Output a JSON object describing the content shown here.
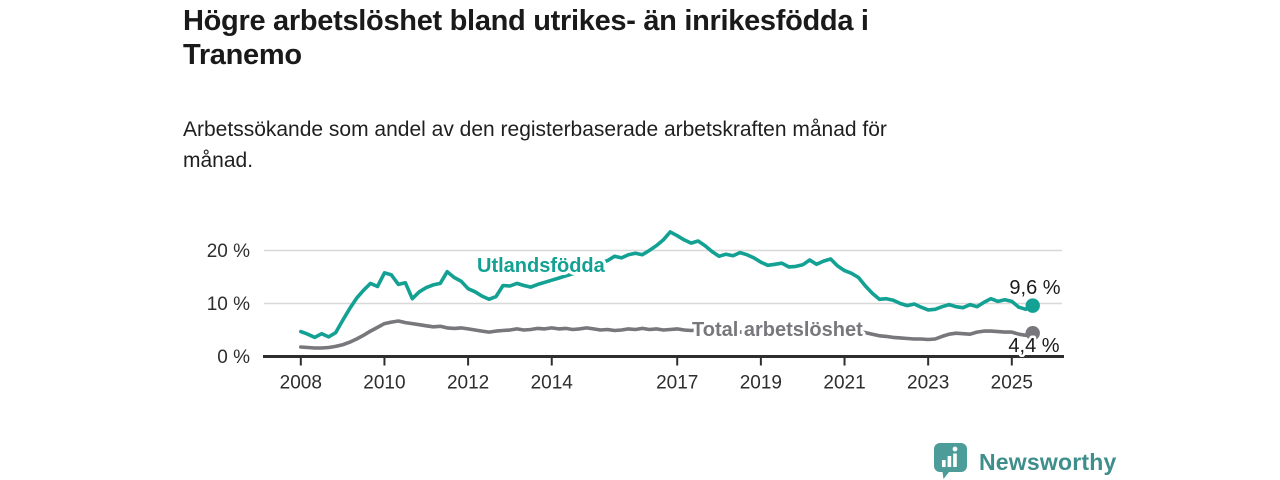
{
  "header": {
    "title_line1": "Högre arbetslöshet bland utrikes- än inrikesfödda i",
    "title_line2": "Tranemo",
    "subtitle_line1": "Arbetssökande som andel av den registerbaserade arbetskraften månad för",
    "subtitle_line2": "månad."
  },
  "footer": {
    "brand": "Newsworthy",
    "brand_color": "#3E8E8B",
    "logo_bubble_color": "#4C9D99"
  },
  "chart_data": {
    "type": "line",
    "title": "Högre arbetslöshet bland utrikes- än inrikesfödda i Tranemo",
    "subtitle": "Arbetssökande som andel av den registerbaserade arbetskraften månad för månad.",
    "grid": "horizontal",
    "legend_position": "inline-labels",
    "x_range": [
      2007.12,
      2026.2
    ],
    "ylim": [
      0,
      24.5
    ],
    "x_ticks": [
      2008,
      2010,
      2012,
      2014,
      2017,
      2019,
      2021,
      2023,
      2025
    ],
    "y_ticks": [
      {
        "value": 0,
        "label": "0 %"
      },
      {
        "value": 10,
        "label": "10 %"
      },
      {
        "value": 20,
        "label": "20 %"
      }
    ],
    "colors": {
      "grid": "#d8d8d8",
      "axis": "#2e2e2e",
      "tick_text": "#2e2e2e",
      "value_label_text": "#1a1a1a"
    },
    "x_start": 2008.0,
    "x_step": 0.1666667,
    "series": [
      {
        "name": "Utlandsfödda",
        "color": "#12A193",
        "end_label": "9,6 %",
        "end_value": 9.6,
        "values": [
          4.7,
          4.2,
          3.6,
          4.3,
          3.7,
          4.5,
          6.8,
          9.0,
          11.0,
          12.5,
          13.8,
          13.2,
          15.8,
          15.4,
          13.6,
          13.9,
          10.9,
          12.2,
          13.0,
          13.5,
          13.8,
          16.0,
          14.9,
          14.2,
          12.8,
          12.2,
          11.4,
          10.8,
          11.3,
          13.4,
          13.3,
          13.8,
          13.4,
          13.1,
          13.6,
          14.0,
          14.4,
          14.8,
          15.2,
          15.6,
          16.1,
          16.6,
          17.2,
          17.6,
          18.1,
          18.9,
          18.6,
          19.2,
          19.5,
          19.2,
          20.0,
          20.9,
          22.0,
          23.5,
          22.8,
          22.0,
          21.4,
          21.8,
          20.9,
          19.8,
          18.9,
          19.3,
          19.0,
          19.6,
          19.2,
          18.6,
          17.8,
          17.2,
          17.4,
          17.6,
          16.9,
          17.0,
          17.3,
          18.2,
          17.4,
          18.0,
          18.4,
          17.1,
          16.2,
          15.7,
          14.9,
          13.3,
          11.9,
          10.8,
          10.9,
          10.6,
          10.0,
          9.6,
          9.9,
          9.3,
          8.8,
          8.9,
          9.4,
          9.8,
          9.4,
          9.2,
          9.8,
          9.4,
          10.2,
          10.9,
          10.4,
          10.7,
          10.4,
          9.3,
          8.9,
          9.6
        ]
      },
      {
        "name": "Total arbetslöshet",
        "color": "#77777C",
        "end_label": "4,4 %",
        "end_value": 4.4,
        "values": [
          1.8,
          1.7,
          1.6,
          1.6,
          1.7,
          1.9,
          2.2,
          2.7,
          3.3,
          4.0,
          4.8,
          5.5,
          6.2,
          6.5,
          6.7,
          6.4,
          6.2,
          6.0,
          5.8,
          5.6,
          5.7,
          5.4,
          5.3,
          5.4,
          5.2,
          5.0,
          4.8,
          4.6,
          4.8,
          4.9,
          5.0,
          5.2,
          5.0,
          5.1,
          5.3,
          5.2,
          5.4,
          5.2,
          5.3,
          5.1,
          5.2,
          5.4,
          5.2,
          5.0,
          5.1,
          4.9,
          5.0,
          5.2,
          5.1,
          5.3,
          5.1,
          5.2,
          5.0,
          5.1,
          5.2,
          5.0,
          4.9,
          5.0,
          4.8,
          4.9,
          4.8,
          4.7,
          4.8,
          4.6,
          4.5,
          4.6,
          4.5,
          4.4,
          4.5,
          4.3,
          4.4,
          4.5,
          4.6,
          5.2,
          5.6,
          5.8,
          5.6,
          5.4,
          5.2,
          5.0,
          4.8,
          4.5,
          4.2,
          3.9,
          3.8,
          3.6,
          3.5,
          3.4,
          3.3,
          3.3,
          3.2,
          3.3,
          3.8,
          4.2,
          4.4,
          4.3,
          4.2,
          4.6,
          4.8,
          4.8,
          4.7,
          4.6,
          4.6,
          4.2,
          4.0,
          4.4
        ]
      }
    ]
  }
}
